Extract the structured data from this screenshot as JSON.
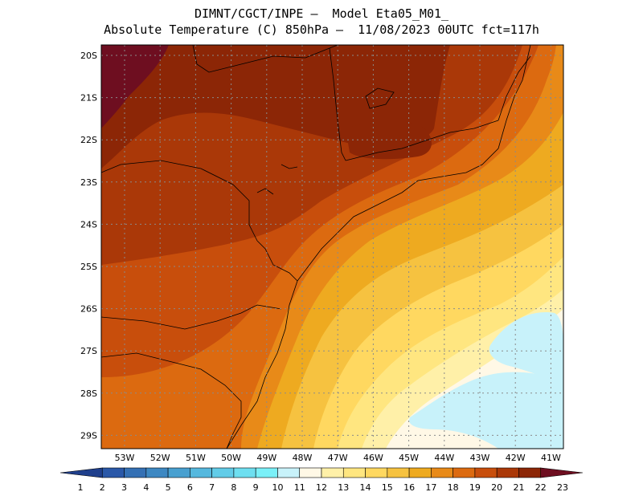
{
  "title": {
    "line1": "DIMNT/CGCT/INPE –  Model Eta05_M01_",
    "line2": "Absolute Temperature (C) 850hPa –  11/08/2023 00UTC fct=117h"
  },
  "lat_labels": [
    "20S",
    "21S",
    "22S",
    "23S",
    "24S",
    "25S",
    "26S",
    "27S",
    "28S",
    "29S"
  ],
  "lon_labels": [
    "53W",
    "52W",
    "51W",
    "50W",
    "49W",
    "48W",
    "47W",
    "46W",
    "45W",
    "44W",
    "43W",
    "42W",
    "41W"
  ],
  "colorbar": {
    "labels": [
      "1",
      "2",
      "3",
      "4",
      "5",
      "6",
      "7",
      "8",
      "9",
      "10",
      "11",
      "12",
      "13",
      "14",
      "15",
      "16",
      "17",
      "18",
      "19",
      "20",
      "21",
      "22",
      "23"
    ],
    "colors": [
      "#1f3f8c",
      "#2a58a8",
      "#3470b4",
      "#3d88c2",
      "#48a0d0",
      "#55b8de",
      "#62cce8",
      "#6edff0",
      "#7af0f8",
      "#c8f2fa",
      "#fff8e6",
      "#fff0a8",
      "#ffe680",
      "#ffd860",
      "#f6c240",
      "#eeaa20",
      "#e88a18",
      "#dc6a10",
      "#c84e0c",
      "#aa3808",
      "#8c2606",
      "#6e0e20"
    ]
  },
  "colors": {
    "t12": "#fff0a8",
    "t13": "#ffe680",
    "t14": "#ffd860",
    "t15": "#f6c240",
    "t16": "#eeaa20",
    "t17": "#e88a18",
    "t18": "#dc6a10",
    "t19": "#c84e0c",
    "t20": "#aa3808",
    "t21": "#8c2606",
    "t22": "#6e0e20",
    "cold": "#c8f2fa",
    "t11": "#fff8e6"
  }
}
